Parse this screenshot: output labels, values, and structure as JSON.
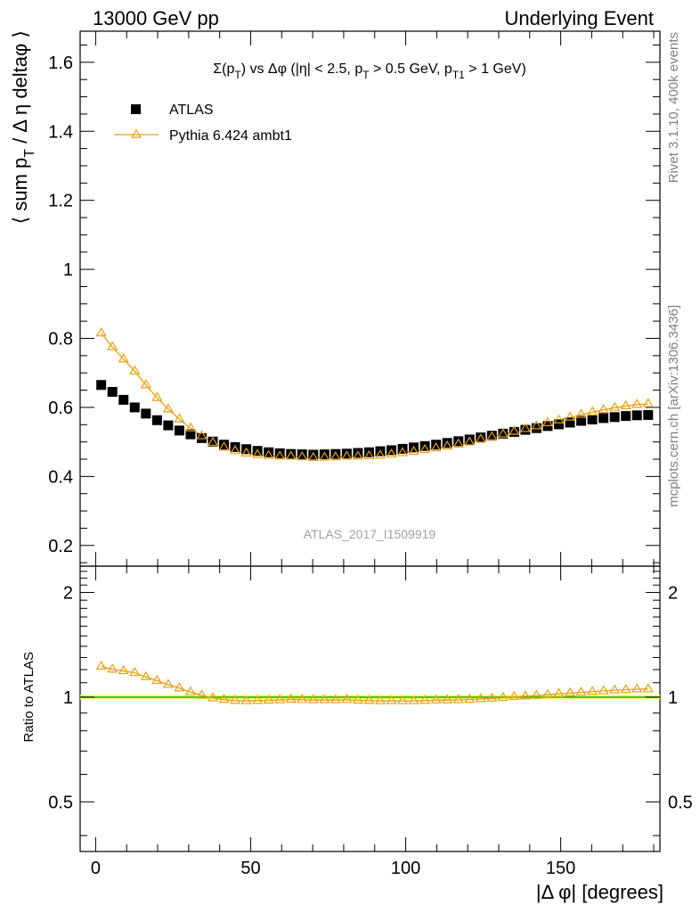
{
  "header": {
    "left": "13000 GeV pp",
    "right": "Underlying Event"
  },
  "side_text": {
    "top": "Rivet 3.1.10,  400k events",
    "bottom": "mcplots.cern.ch [arXiv:1306.3436]"
  },
  "watermark": "ATLAS_2017_I1509919",
  "colors": {
    "data": "#000000",
    "mc": "#e8a010",
    "band": "#ffff66",
    "refline": "#22b022"
  },
  "chart_data": [
    {
      "type": "scatter",
      "panel": "main",
      "title": "Σ(p_T) vs Δφ (|η| < 2.5, p_T > 0.5 GeV, p_T1 > 1 GeV)",
      "title_parts": [
        "Σ(p",
        "T",
        ") vs Δφ (|η| < 2.5, p",
        "T",
        " > 0.5 GeV, p",
        "T1",
        " > 1 GeV)"
      ],
      "ylabel": "⟨ sum p_T / Δ η deltaφ ⟩",
      "ylabel_parts": [
        "⟨ sum p",
        "T",
        " / Δ η deltaφ ⟩"
      ],
      "xlim": [
        -5,
        182
      ],
      "ylim": [
        0.14,
        1.69
      ],
      "yticks": [
        0.2,
        0.4,
        0.6,
        0.8,
        1,
        1.2,
        1.4,
        1.6
      ],
      "ytick_labels": [
        "0.2",
        "0.4",
        "0.6",
        "0.8",
        "1",
        "1.2",
        "1.4",
        "1.6"
      ],
      "legend": {
        "placement": "top-left",
        "entries": [
          "ATLAS",
          "Pythia 6.424 ambt1"
        ]
      },
      "x": [
        1.8,
        5.4,
        9.0,
        12.6,
        16.2,
        19.8,
        23.4,
        27.0,
        30.6,
        34.2,
        37.8,
        41.4,
        45.0,
        48.6,
        52.2,
        55.8,
        59.4,
        63.0,
        66.6,
        70.2,
        73.8,
        77.4,
        81.0,
        84.6,
        88.2,
        91.8,
        95.4,
        99.0,
        102.6,
        106.2,
        109.8,
        113.4,
        117.0,
        120.6,
        124.2,
        127.8,
        131.4,
        135.0,
        138.6,
        142.2,
        145.8,
        149.4,
        153.0,
        156.6,
        160.2,
        163.8,
        167.4,
        171.0,
        174.6,
        178.2
      ],
      "series": [
        {
          "name": "ATLAS",
          "marker": "square",
          "values": [
            0.665,
            0.645,
            0.622,
            0.6,
            0.582,
            0.563,
            0.548,
            0.533,
            0.522,
            0.511,
            0.501,
            0.492,
            0.485,
            0.479,
            0.474,
            0.47,
            0.467,
            0.465,
            0.464,
            0.463,
            0.464,
            0.465,
            0.466,
            0.468,
            0.47,
            0.473,
            0.476,
            0.48,
            0.484,
            0.488,
            0.492,
            0.497,
            0.502,
            0.507,
            0.513,
            0.518,
            0.524,
            0.529,
            0.535,
            0.54,
            0.546,
            0.551,
            0.556,
            0.561,
            0.565,
            0.569,
            0.572,
            0.575,
            0.577,
            0.578
          ]
        },
        {
          "name": "Pythia 6.424 ambt1",
          "marker": "triangle",
          "values": [
            0.815,
            0.775,
            0.74,
            0.705,
            0.665,
            0.628,
            0.595,
            0.566,
            0.54,
            0.517,
            0.498,
            0.484,
            0.474,
            0.467,
            0.463,
            0.46,
            0.458,
            0.458,
            0.456,
            0.454,
            0.455,
            0.456,
            0.458,
            0.458,
            0.459,
            0.461,
            0.464,
            0.468,
            0.472,
            0.477,
            0.482,
            0.487,
            0.493,
            0.499,
            0.507,
            0.514,
            0.522,
            0.53,
            0.538,
            0.546,
            0.555,
            0.563,
            0.571,
            0.579,
            0.586,
            0.593,
            0.599,
            0.604,
            0.608,
            0.61
          ]
        }
      ]
    },
    {
      "type": "scatter",
      "panel": "ratio",
      "ylabel": "Ratio to ATLAS",
      "xlabel": "|Δ φ| [degrees]",
      "xlim": [
        -5,
        182
      ],
      "ylim": [
        0.36,
        2.38
      ],
      "ylog": true,
      "xticks": [
        0,
        50,
        100,
        150
      ],
      "xtick_labels": [
        "0",
        "50",
        "100",
        "150"
      ],
      "yticks": [
        0.5,
        1,
        2
      ],
      "ytick_labels": [
        "0.5",
        "1",
        "2"
      ],
      "band": [
        0.985,
        1.015
      ],
      "series": [
        {
          "name": "Pythia 6.424 ambt1",
          "marker": "triangle",
          "values": [
            1.226,
            1.202,
            1.19,
            1.175,
            1.143,
            1.115,
            1.086,
            1.062,
            1.035,
            1.012,
            0.994,
            0.984,
            0.977,
            0.975,
            0.977,
            0.979,
            0.981,
            0.985,
            0.983,
            0.981,
            0.981,
            0.981,
            0.983,
            0.979,
            0.977,
            0.975,
            0.975,
            0.975,
            0.975,
            0.977,
            0.98,
            0.98,
            0.982,
            0.984,
            0.988,
            0.992,
            0.996,
            1.002,
            1.006,
            1.011,
            1.016,
            1.022,
            1.027,
            1.032,
            1.037,
            1.042,
            1.047,
            1.05,
            1.054,
            1.055
          ]
        }
      ]
    }
  ]
}
